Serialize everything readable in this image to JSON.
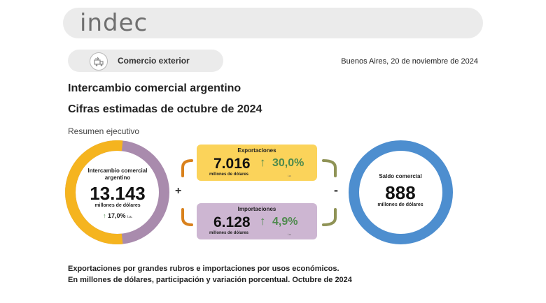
{
  "header": {
    "logo_text": "indec"
  },
  "section": {
    "label": "Comercio exterior",
    "icon": "trade-icon"
  },
  "date": "Buenos Aires, 20 de noviembre de 2024",
  "titles": {
    "main": "Intercambio comercial argentino",
    "sub": "Cifras estimadas de octubre de 2024",
    "summary": "Resumen ejecutivo"
  },
  "intercambio": {
    "label": "Intercambio comercial argentino",
    "value": "13.143",
    "unit": "millones de dólares",
    "variation": "17,0%",
    "variation_note": "i.a.",
    "exports_share": 0.534,
    "colors": {
      "exports": "#f5b41f",
      "imports": "#a98bad"
    }
  },
  "operators": {
    "plus": "+",
    "minus": "-"
  },
  "exportaciones": {
    "title": "Exportaciones",
    "value": "7.016",
    "variation": "30,0%",
    "unit": "millones de dólares",
    "note": "i.a.",
    "color": "#fbd35a"
  },
  "importaciones": {
    "title": "Importaciones",
    "value": "6.128",
    "variation": "4,9%",
    "unit": "millones de dólares",
    "note": "i.a.",
    "color": "#cdb6d2"
  },
  "saldo": {
    "label": "Saldo comercial",
    "value": "888",
    "unit": "millones de dólares",
    "color": "#4d8ecf"
  },
  "footer": {
    "line1": "Exportaciones por grandes rubros e importaciones por usos económicos.",
    "line2": "En millones de dólares, participación y variación porcentual. Octubre de 2024"
  },
  "colors": {
    "arrow_up": "#4e8a4d",
    "bracket_export": "#d9811c",
    "bracket_olive": "#8f9356"
  }
}
